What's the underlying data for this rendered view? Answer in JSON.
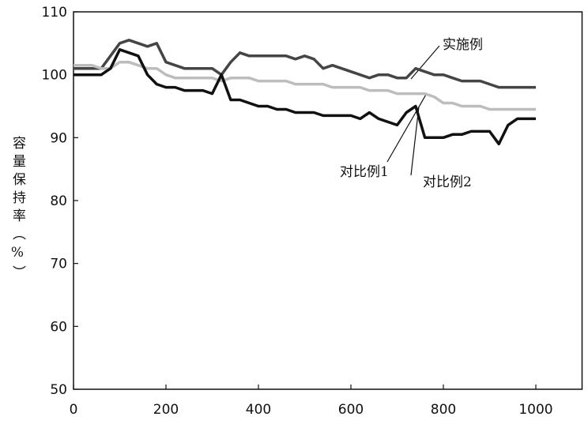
{
  "chart_data": {
    "type": "line",
    "x": [
      0,
      20,
      40,
      60,
      80,
      100,
      120,
      140,
      160,
      180,
      200,
      220,
      240,
      260,
      280,
      300,
      320,
      340,
      360,
      380,
      400,
      420,
      440,
      460,
      480,
      500,
      520,
      540,
      560,
      580,
      600,
      620,
      640,
      660,
      680,
      700,
      720,
      740,
      760,
      780,
      800,
      820,
      840,
      860,
      880,
      900,
      920,
      940,
      960,
      980,
      1000
    ],
    "series": [
      {
        "name": "实施例",
        "color": "#454545",
        "values": [
          101,
          101,
          101,
          101,
          103,
          105,
          105.5,
          105,
          104.5,
          105,
          102,
          101.5,
          101,
          101,
          101,
          101,
          100,
          102,
          103.5,
          103,
          103,
          103,
          103,
          103,
          102.5,
          103,
          102.5,
          101,
          101.5,
          101,
          100.5,
          100,
          99.5,
          100,
          100,
          99.5,
          99.5,
          101,
          100.5,
          100,
          100,
          99.5,
          99,
          99,
          99,
          98.5,
          98,
          98,
          98,
          98,
          98
        ]
      },
      {
        "name": "对比例1",
        "color": "#bdbdbd",
        "values": [
          101.5,
          101.5,
          101.5,
          101,
          101,
          102,
          102,
          101.5,
          101,
          101,
          100,
          99.5,
          99.5,
          99.5,
          99.5,
          99.5,
          99,
          99.5,
          99.5,
          99.5,
          99,
          99,
          99,
          99,
          98.5,
          98.5,
          98.5,
          98.5,
          98,
          98,
          98,
          98,
          97.5,
          97.5,
          97.5,
          97,
          97,
          97,
          97,
          96.5,
          95.5,
          95.5,
          95,
          95,
          95,
          94.5,
          94.5,
          94.5,
          94.5,
          94.5,
          94.5
        ]
      },
      {
        "name": "对比例2",
        "color": "#111111",
        "values": [
          100,
          100,
          100,
          100,
          101,
          104,
          103.5,
          103,
          100,
          98.5,
          98,
          98,
          97.5,
          97.5,
          97.5,
          97,
          100,
          96,
          96,
          95.5,
          95,
          95,
          94.5,
          94.5,
          94,
          94,
          94,
          93.5,
          93.5,
          93.5,
          93.5,
          93,
          94,
          93,
          92.5,
          92,
          94,
          95,
          90,
          90,
          90,
          90.5,
          90.5,
          91,
          91,
          91,
          89,
          92,
          93,
          93,
          93
        ]
      }
    ],
    "xlim": [
      0,
      1100
    ],
    "xticks": [
      0,
      200,
      400,
      600,
      800,
      1000
    ],
    "ylim": [
      50,
      110
    ],
    "yticks": [
      50,
      60,
      70,
      80,
      90,
      100,
      110
    ],
    "y_label": "容量保持率（%）"
  }
}
